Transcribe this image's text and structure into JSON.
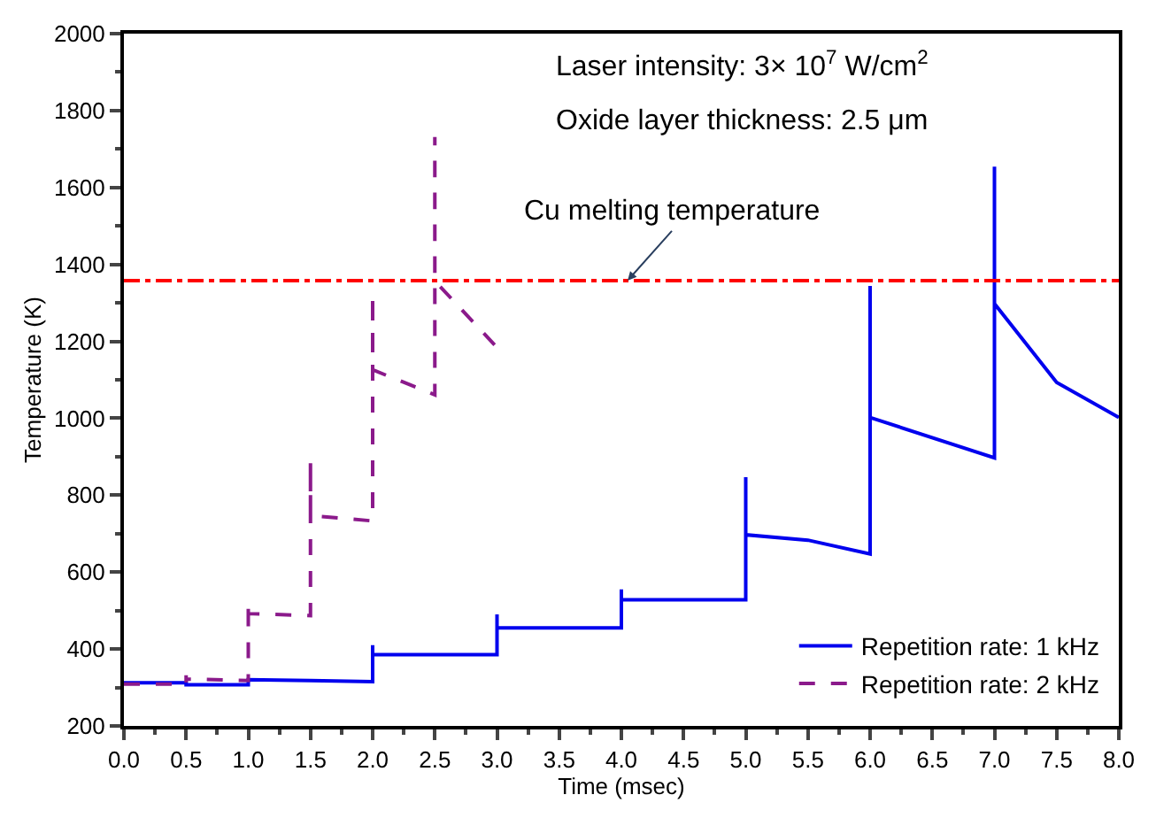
{
  "chart_data": {
    "type": "line",
    "xlabel": "Time (msec)",
    "ylabel": "Temperature (K)",
    "xlim": [
      0,
      8
    ],
    "xticks": [
      {
        "value": 0,
        "label": "0.0"
      },
      {
        "value": 0.5,
        "label": "0.5"
      },
      {
        "value": 1,
        "label": "1.0"
      },
      {
        "value": 1.5,
        "label": "1.5"
      },
      {
        "value": 2,
        "label": "2.0"
      },
      {
        "value": 2.5,
        "label": "2.5"
      },
      {
        "value": 3,
        "label": "3.0"
      },
      {
        "value": 3.5,
        "label": "3.5"
      },
      {
        "value": 4,
        "label": "4.0"
      },
      {
        "value": 4.5,
        "label": "4.5"
      },
      {
        "value": 5,
        "label": "5.0"
      },
      {
        "value": 5.5,
        "label": "5.5"
      },
      {
        "value": 6,
        "label": "6.0"
      },
      {
        "value": 6.5,
        "label": "6.5"
      },
      {
        "value": 7,
        "label": "7.0"
      },
      {
        "value": 7.5,
        "label": "7.5"
      },
      {
        "value": 8,
        "label": "8.0"
      }
    ],
    "ylim": [
      200,
      2000
    ],
    "yticks": [
      200,
      400,
      600,
      800,
      1000,
      1200,
      1400,
      1600,
      1800,
      2000
    ],
    "legend": "bottom right",
    "marker": "none",
    "series": [
      {
        "name": "Repetition rate: 1 kHz",
        "color": "#0000ee",
        "line_style": "solid",
        "x": [
          0,
          0.5,
          0.5,
          1,
          1,
          1.5,
          2,
          2,
          2,
          3,
          3,
          3,
          4,
          4,
          4,
          5,
          5,
          5,
          5.5,
          6,
          6,
          6,
          7,
          7,
          7,
          7,
          7.5,
          8
        ],
        "values": [
          312,
          312,
          307,
          307,
          320,
          318,
          315,
          410,
          385,
          385,
          490,
          455,
          455,
          555,
          528,
          528,
          847,
          697,
          683,
          647,
          1344,
          1002,
          897,
          1654,
          1494,
          1298,
          1093,
          1002
        ]
      },
      {
        "name": "Repetition rate: 2 kHz",
        "color": "#8b1a8b",
        "line_style": "dashed",
        "x": [
          0,
          0.5,
          0.5,
          0.5,
          1,
          1,
          1,
          1.5,
          1.5,
          1.5,
          2,
          2,
          2,
          2.5,
          2.5,
          2.5,
          3
        ],
        "values": [
          309,
          309,
          332,
          322,
          318,
          523,
          492,
          487,
          888,
          747,
          733,
          1321,
          1126,
          1061,
          1731,
          1357,
          1184
        ]
      }
    ],
    "ref_lines": [
      {
        "axis": "y",
        "value": 1358,
        "color": "#ff0000",
        "line_style": "dashdot"
      }
    ],
    "annotations": [
      "Laser intensity: 3× 10$^{7}$ W/cm$^{2}$",
      "Oxide layer thickness: 2.5 μm",
      {
        "text": "Cu melting temperature",
        "x": 4.05,
        "y": 1358
      }
    ]
  }
}
